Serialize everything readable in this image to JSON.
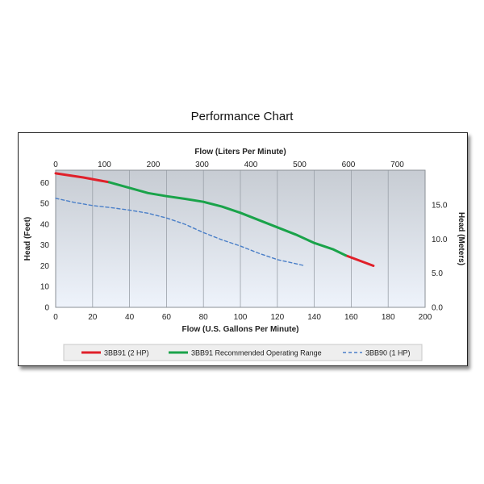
{
  "title": "Performance Chart",
  "chart_data": {
    "type": "line",
    "xlabel": "Flow (U.S. Gallons Per Minute)",
    "x2label": "Flow (Liters Per Minute)",
    "ylabel": "Head (Feet)",
    "y2label": "Head (Meters)",
    "xlim": [
      0,
      200
    ],
    "ylim": [
      0,
      66
    ],
    "x2lim": [
      0,
      757
    ],
    "y2lim": [
      0,
      20.1
    ],
    "xticks": [
      "0",
      "20",
      "40",
      "60",
      "80",
      "100",
      "120",
      "140",
      "160",
      "180",
      "200"
    ],
    "yticks": [
      "0",
      "10",
      "20",
      "30",
      "40",
      "50",
      "60"
    ],
    "x2ticks": [
      "0",
      "100",
      "200",
      "300",
      "400",
      "500",
      "600",
      "700"
    ],
    "y2ticks": [
      "0.0",
      "5.0",
      "10.0",
      "15.0"
    ],
    "grid": true,
    "legend_position": "bottom",
    "series": [
      {
        "name": "3BB91 (2 HP)",
        "color": "#e0202a",
        "style": "solid",
        "segments": [
          [
            [
              0,
              64.5
            ],
            [
              15,
              62.5
            ],
            [
              29,
              60.2
            ]
          ],
          [
            [
              157,
              25
            ],
            [
              172,
              20
            ]
          ]
        ]
      },
      {
        "name": "3BB91 Recommended Operating Range",
        "color": "#1aa34a",
        "style": "solid",
        "segments": [
          [
            [
              29,
              60.2
            ],
            [
              40,
              57.5
            ],
            [
              50,
              55
            ],
            [
              60,
              53.5
            ],
            [
              70,
              52.2
            ],
            [
              80,
              50.8
            ],
            [
              90,
              48.5
            ],
            [
              100,
              45.5
            ],
            [
              110,
              42
            ],
            [
              120,
              38.5
            ],
            [
              130,
              35
            ],
            [
              140,
              31
            ],
            [
              150,
              28
            ],
            [
              157,
              25
            ]
          ]
        ]
      },
      {
        "name": "3BB90 (1 HP)",
        "color": "#4a7fc8",
        "style": "dashed",
        "segments": [
          [
            [
              0,
              52.5
            ],
            [
              10,
              50.5
            ],
            [
              20,
              49
            ],
            [
              30,
              48
            ],
            [
              40,
              46.8
            ],
            [
              50,
              45.3
            ],
            [
              60,
              43
            ],
            [
              70,
              40
            ],
            [
              80,
              36
            ],
            [
              90,
              32.5
            ],
            [
              100,
              29.5
            ],
            [
              110,
              26
            ],
            [
              120,
              23
            ],
            [
              130,
              21
            ],
            [
              135,
              20
            ]
          ]
        ]
      }
    ]
  }
}
